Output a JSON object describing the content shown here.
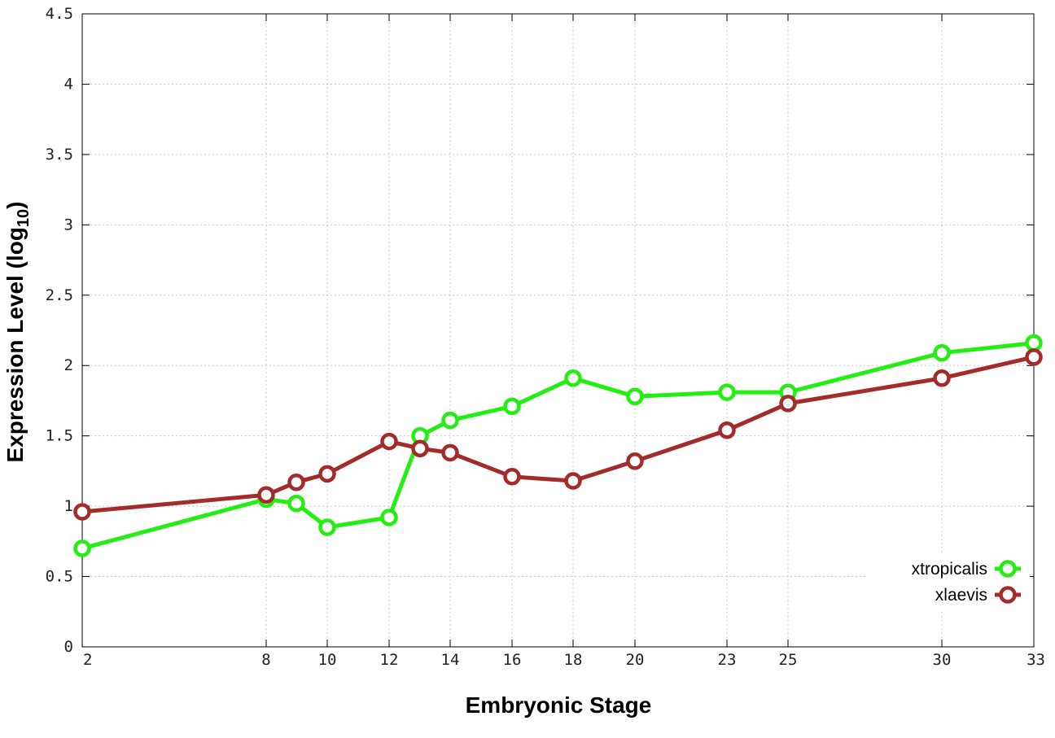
{
  "chart_data": {
    "type": "line",
    "xlabel": "Embryonic Stage",
    "ylabel": "Expression Level (log",
    "ylabel_subscript": "10",
    "ylabel_close": ")",
    "x_ticks": [
      "2",
      "8",
      "10",
      "12",
      "14",
      "16",
      "18",
      "20",
      "23",
      "25",
      "30",
      "33"
    ],
    "y_ticks": [
      "0",
      "0.5",
      "1",
      "1.5",
      "2",
      "2.5",
      "3",
      "3.5",
      "4",
      "4.5"
    ],
    "ylim": [
      0,
      4.5
    ],
    "xlim": [
      2,
      33
    ],
    "grid": true,
    "legend_position": "bottom-right",
    "series": [
      {
        "name": "xtropicalis",
        "color": "#22ee11",
        "x": [
          2,
          8,
          9,
          10,
          12,
          13,
          14,
          16,
          18,
          20,
          23,
          25,
          30,
          33
        ],
        "values": [
          0.7,
          1.05,
          1.02,
          0.85,
          0.92,
          1.5,
          1.61,
          1.71,
          1.91,
          1.78,
          1.81,
          1.81,
          2.09,
          2.16
        ]
      },
      {
        "name": "xlaevis",
        "color": "#a52a2a",
        "x": [
          2,
          8,
          9,
          10,
          12,
          13,
          14,
          16,
          18,
          20,
          23,
          25,
          30,
          33
        ],
        "values": [
          0.96,
          1.08,
          1.17,
          1.23,
          1.46,
          1.41,
          1.38,
          1.21,
          1.18,
          1.32,
          1.54,
          1.73,
          1.91,
          2.06
        ]
      }
    ]
  }
}
